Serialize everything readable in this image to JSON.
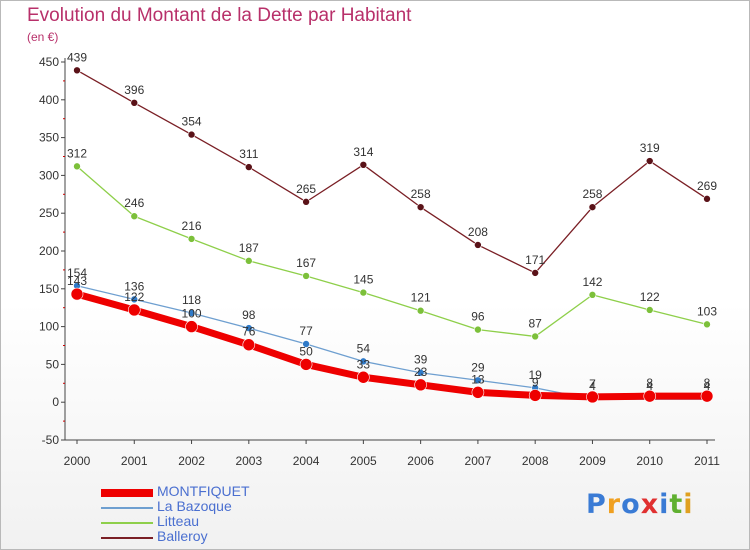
{
  "title": "Evolution du Montant de la Dette par Habitant",
  "unit_label": "(en €)",
  "logo": {
    "text": "Proxiti",
    "letters": [
      "P",
      "r",
      "o",
      "x",
      "i",
      "t",
      "i"
    ],
    "colors": [
      "#3a7bd5",
      "#f0a020",
      "#3a7bd5",
      "#e03030",
      "#3a7bd5",
      "#60b030",
      "#e0a020"
    ]
  },
  "chart_data": {
    "type": "line",
    "title": "Evolution du Montant de la Dette par Habitant",
    "ylabel": "(en €)",
    "xlabel": "",
    "categories": [
      "2000",
      "2001",
      "2002",
      "2003",
      "2004",
      "2005",
      "2006",
      "2007",
      "2008",
      "2009",
      "2010",
      "2011"
    ],
    "ylim": [
      -50,
      450
    ],
    "yticks": [
      -50,
      0,
      50,
      100,
      150,
      200,
      250,
      300,
      350,
      400,
      450
    ],
    "grid": false,
    "legend_position": "bottom-left",
    "series": [
      {
        "name": "Balleroy",
        "color": "#7a1f25",
        "values": [
          439,
          396,
          354,
          311,
          265,
          314,
          258,
          208,
          171,
          258,
          319,
          269
        ],
        "labels": [
          "439",
          "396",
          "354",
          "311",
          "265",
          "314",
          "258",
          "208",
          "171",
          "258",
          "319",
          "269"
        ]
      },
      {
        "name": "Litteau",
        "color": "#8ecf4a",
        "values": [
          312,
          246,
          216,
          187,
          167,
          145,
          121,
          96,
          87,
          142,
          122,
          103
        ],
        "labels": [
          "312",
          "246",
          "216",
          "187",
          "167",
          "145",
          "121",
          "96",
          "87",
          "142",
          "122",
          "103"
        ]
      },
      {
        "name": "La Bazoque",
        "color": "#6e9fd0",
        "values": [
          154,
          136,
          118,
          98,
          77,
          54,
          39,
          29,
          19,
          4,
          4,
          4
        ],
        "labels": [
          "154",
          "136",
          "118",
          "98",
          "77",
          "54",
          "39",
          "29",
          "19",
          "4",
          "4",
          "4"
        ]
      },
      {
        "name": "MONTFIQUET",
        "color": "#ee0000",
        "values": [
          143,
          122,
          100,
          76,
          50,
          33,
          23,
          13,
          9,
          7,
          8,
          8
        ],
        "labels": [
          "143",
          "122",
          "100",
          "76",
          "50",
          "33",
          "23",
          "13",
          "9",
          "7",
          "8",
          "8"
        ]
      }
    ]
  },
  "legend": [
    {
      "name": "MONTFIQUET",
      "color": "#ee0000"
    },
    {
      "name": "La Bazoque",
      "color": "#6e9fd0"
    },
    {
      "name": "Litteau",
      "color": "#8ecf4a"
    },
    {
      "name": "Balleroy",
      "color": "#7a1f25"
    }
  ]
}
